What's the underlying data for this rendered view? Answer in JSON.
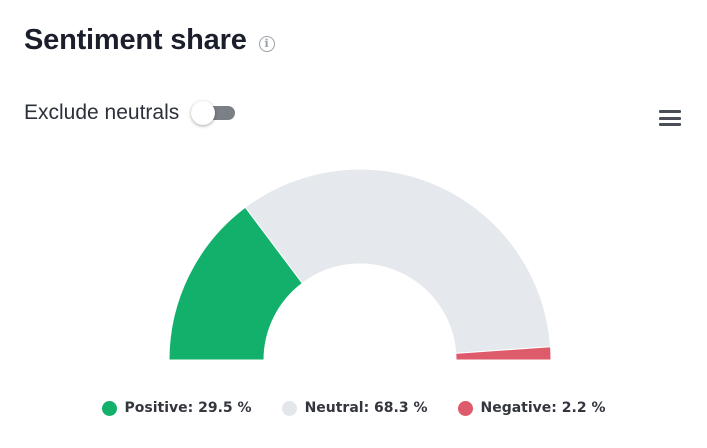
{
  "header": {
    "title": "Sentiment share",
    "info_icon": "info-icon"
  },
  "controls": {
    "toggle_label": "Exclude neutrals",
    "toggle_on": false,
    "menu_icon": "hamburger-menu-icon"
  },
  "chart_data": {
    "type": "pie",
    "variant": "semi-donut",
    "start_angle_deg": -90,
    "end_angle_deg": 90,
    "series": [
      {
        "name": "Positive",
        "value": 29.5,
        "color": "#13b06c",
        "legend_text": "Positive: 29.5 %"
      },
      {
        "name": "Neutral",
        "value": 68.3,
        "color": "#e5e8ec",
        "legend_text": "Neutral: 68.3 %"
      },
      {
        "name": "Negative",
        "value": 2.2,
        "color": "#de5b6b",
        "legend_text": "Negative: 2.2 %"
      }
    ],
    "legend_placement": "bottom"
  }
}
